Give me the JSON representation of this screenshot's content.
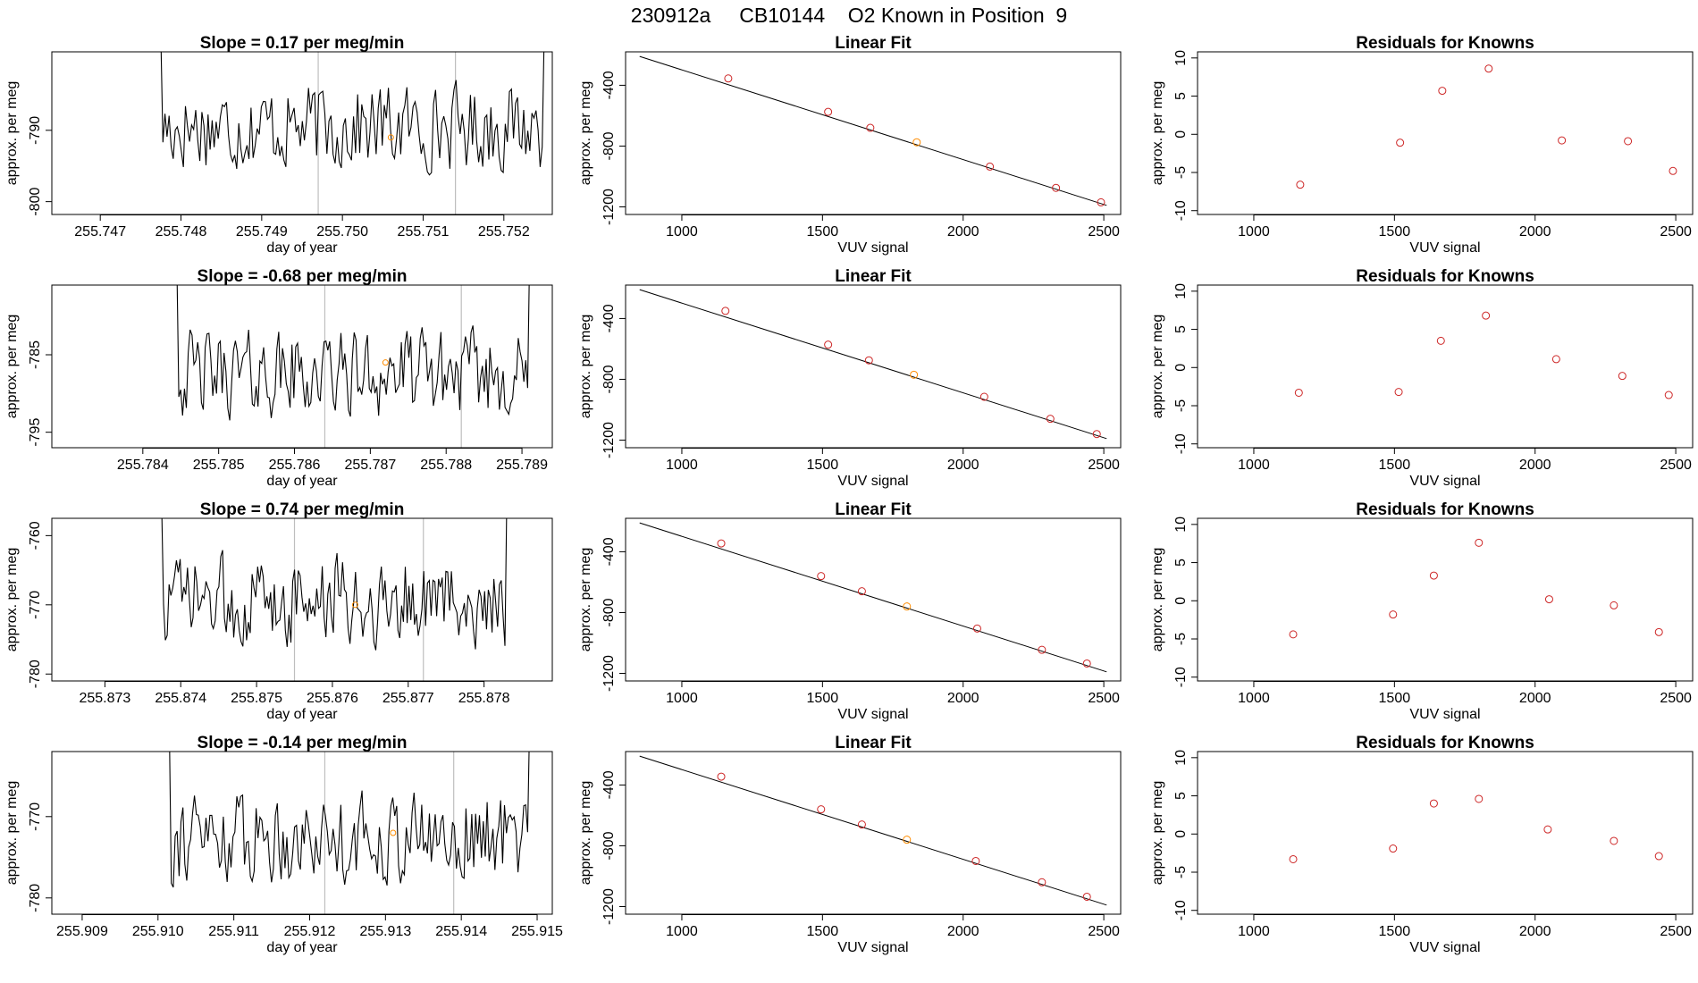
{
  "figure_title": "230912a     CB10144    O2 Known in Position  9",
  "colors": {
    "axis": "#000000",
    "line": "#000000",
    "residual_point": "#cd2626",
    "known_point": "#ff8c00",
    "vline": "#bebebe"
  },
  "chart_data": [
    {
      "type": "line",
      "title": "Slope =  0.17  per meg/min",
      "xlabel": "day of year",
      "ylabel": "approx. per meg",
      "xlim": [
        255.7464,
        255.7526
      ],
      "ylim": [
        -801.8,
        -779
      ],
      "xticks": [
        255.747,
        255.748,
        255.749,
        255.75,
        255.751,
        255.752
      ],
      "xtick_labels": [
        "255.747",
        "255.748",
        "255.749",
        "255.750",
        "255.751",
        "255.752"
      ],
      "yticks": [
        -790,
        -800
      ],
      "ytick_labels": [
        "-790",
        "-800"
      ],
      "vlines": [
        255.7497,
        255.7514
      ],
      "highlight": {
        "x": 255.7506,
        "y": -791
      },
      "series_x_range": [
        255.7477,
        255.7525
      ],
      "series_mean": -789.5,
      "series_amp": 6.5,
      "seed": 17
    },
    {
      "type": "scatter",
      "title": "Linear Fit",
      "xlabel": "VUV signal",
      "ylabel": "approx. per meg",
      "xlim": [
        800,
        2560
      ],
      "ylim": [
        -1250,
        -180
      ],
      "xticks": [
        1000,
        1500,
        2000,
        2500
      ],
      "xtick_labels": [
        "1000",
        "1500",
        "2000",
        "2500"
      ],
      "yticks": [
        -400,
        -800,
        -1200
      ],
      "ytick_labels": [
        "-400",
        "-800",
        "-1200"
      ],
      "fit_line": {
        "x": [
          850,
          2510
        ],
        "y": [
          -210,
          -1190
        ]
      },
      "x": [
        1165,
        1520,
        1670,
        1835,
        2095,
        2330,
        2490
      ],
      "y": [
        -355,
        -575,
        -680,
        -775,
        -935,
        -1075,
        -1170
      ],
      "known_index": 3
    },
    {
      "type": "scatter",
      "title": "Residuals for Knowns",
      "xlabel": "VUV signal",
      "ylabel": "approx. per meg",
      "xlim": [
        800,
        2560
      ],
      "ylim": [
        -10.5,
        10.8
      ],
      "xticks": [
        1000,
        1500,
        2000,
        2500
      ],
      "xtick_labels": [
        "1000",
        "1500",
        "2000",
        "2500"
      ],
      "yticks": [
        10,
        5,
        0,
        -5,
        -10
      ],
      "ytick_labels": [
        "10",
        "5",
        "0",
        "-5",
        "-10"
      ],
      "x": [
        1165,
        1520,
        1670,
        1835,
        2095,
        2330,
        2490
      ],
      "y": [
        -6.6,
        -1.1,
        5.7,
        8.6,
        -0.8,
        -0.9,
        -4.8
      ]
    },
    {
      "type": "line",
      "title": "Slope =  -0.68  per meg/min",
      "xlabel": "day of year",
      "ylabel": "approx. per meg",
      "xlim": [
        255.7828,
        255.7894
      ],
      "ylim": [
        -797,
        -776
      ],
      "xticks": [
        255.784,
        255.785,
        255.786,
        255.787,
        255.788,
        255.789
      ],
      "xtick_labels": [
        "255.784",
        "255.785",
        "255.786",
        "255.787",
        "255.788",
        "255.789"
      ],
      "yticks": [
        -785,
        -795
      ],
      "ytick_labels": [
        "-785",
        "-795"
      ],
      "vlines": [
        255.7864,
        255.7882
      ],
      "highlight": {
        "x": 255.7872,
        "y": -786
      },
      "series_x_range": [
        255.7844,
        255.7891
      ],
      "series_mean": -787.5,
      "series_amp": 6,
      "seed": 42
    },
    {
      "type": "scatter",
      "title": "Linear Fit",
      "xlabel": "VUV signal",
      "ylabel": "approx. per meg",
      "xlim": [
        800,
        2560
      ],
      "ylim": [
        -1250,
        -180
      ],
      "xticks": [
        1000,
        1500,
        2000,
        2500
      ],
      "xtick_labels": [
        "1000",
        "1500",
        "2000",
        "2500"
      ],
      "yticks": [
        -400,
        -800,
        -1200
      ],
      "ytick_labels": [
        "-400",
        "-800",
        "-1200"
      ],
      "fit_line": {
        "x": [
          850,
          2510
        ],
        "y": [
          -210,
          -1190
        ]
      },
      "x": [
        1155,
        1520,
        1665,
        1825,
        2075,
        2310,
        2475
      ],
      "y": [
        -350,
        -572,
        -675,
        -770,
        -915,
        -1060,
        -1160
      ],
      "known_index": 3
    },
    {
      "type": "scatter",
      "title": "Residuals for Knowns",
      "xlabel": "VUV signal",
      "ylabel": "approx. per meg",
      "xlim": [
        800,
        2560
      ],
      "ylim": [
        -10.5,
        10.8
      ],
      "xticks": [
        1000,
        1500,
        2000,
        2500
      ],
      "xtick_labels": [
        "1000",
        "1500",
        "2000",
        "2500"
      ],
      "yticks": [
        10,
        5,
        0,
        -5,
        -10
      ],
      "ytick_labels": [
        "10",
        "5",
        "0",
        "-5",
        "-10"
      ],
      "x": [
        1160,
        1515,
        1665,
        1825,
        2075,
        2310,
        2475
      ],
      "y": [
        -3.3,
        -3.2,
        3.5,
        6.8,
        1.1,
        -1.1,
        -3.6
      ]
    },
    {
      "type": "line",
      "title": "Slope =  0.74  per meg/min",
      "xlabel": "day of year",
      "ylabel": "approx. per meg",
      "xlim": [
        255.8723,
        255.8789
      ],
      "ylim": [
        -781,
        -757.5
      ],
      "xticks": [
        255.873,
        255.874,
        255.875,
        255.876,
        255.877,
        255.878
      ],
      "xtick_labels": [
        "255.873",
        "255.874",
        "255.875",
        "255.876",
        "255.877",
        "255.878"
      ],
      "yticks": [
        -760,
        -770,
        -780
      ],
      "ytick_labels": [
        "-760",
        "-770",
        "-780"
      ],
      "vlines": [
        255.8755,
        255.8772
      ],
      "highlight": {
        "x": 255.8763,
        "y": -770
      },
      "series_x_range": [
        255.8737,
        255.8783
      ],
      "series_mean": -769.5,
      "series_amp": 7,
      "seed": 73
    },
    {
      "type": "scatter",
      "title": "Linear Fit",
      "xlabel": "VUV signal",
      "ylabel": "approx. per meg",
      "xlim": [
        800,
        2560
      ],
      "ylim": [
        -1250,
        -180
      ],
      "xticks": [
        1000,
        1500,
        2000,
        2500
      ],
      "xtick_labels": [
        "1000",
        "1500",
        "2000",
        "2500"
      ],
      "yticks": [
        -400,
        -800,
        -1200
      ],
      "ytick_labels": [
        "-400",
        "-800",
        "-1200"
      ],
      "fit_line": {
        "x": [
          850,
          2510
        ],
        "y": [
          -210,
          -1190
        ]
      },
      "x": [
        1140,
        1495,
        1640,
        1800,
        2050,
        2280,
        2440
      ],
      "y": [
        -345,
        -560,
        -660,
        -760,
        -905,
        -1045,
        -1135
      ],
      "known_index": 3
    },
    {
      "type": "scatter",
      "title": "Residuals for Knowns",
      "xlabel": "VUV signal",
      "ylabel": "approx. per meg",
      "xlim": [
        800,
        2560
      ],
      "ylim": [
        -10.5,
        10.8
      ],
      "xticks": [
        1000,
        1500,
        2000,
        2500
      ],
      "xtick_labels": [
        "1000",
        "1500",
        "2000",
        "2500"
      ],
      "yticks": [
        10,
        5,
        0,
        -5,
        -10
      ],
      "ytick_labels": [
        "10",
        "5",
        "0",
        "-5",
        "-10"
      ],
      "x": [
        1140,
        1495,
        1640,
        1800,
        2050,
        2280,
        2440
      ],
      "y": [
        -4.4,
        -1.8,
        3.3,
        7.6,
        0.2,
        -0.6,
        -4.1
      ]
    },
    {
      "type": "line",
      "title": "Slope =  -0.14  per meg/min",
      "xlabel": "day of year",
      "ylabel": "approx. per meg",
      "xlim": [
        255.9086,
        255.9152
      ],
      "ylim": [
        -782,
        -762
      ],
      "xticks": [
        255.909,
        255.91,
        255.911,
        255.912,
        255.913,
        255.914,
        255.915
      ],
      "xtick_labels": [
        "255.909",
        "255.910",
        "255.911",
        "255.912",
        "255.913",
        "255.914",
        "255.915"
      ],
      "yticks": [
        -770,
        -780
      ],
      "ytick_labels": [
        "-770",
        "-780"
      ],
      "vlines": [
        255.9122,
        255.9139
      ],
      "highlight": {
        "x": 255.9131,
        "y": -772
      },
      "series_x_range": [
        255.9101,
        255.9149
      ],
      "series_mean": -772.5,
      "series_amp": 6,
      "seed": 91
    },
    {
      "type": "scatter",
      "title": "Linear Fit",
      "xlabel": "VUV signal",
      "ylabel": "approx. per meg",
      "xlim": [
        800,
        2560
      ],
      "ylim": [
        -1250,
        -180
      ],
      "xticks": [
        1000,
        1500,
        2000,
        2500
      ],
      "xtick_labels": [
        "1000",
        "1500",
        "2000",
        "2500"
      ],
      "yticks": [
        -400,
        -800,
        -1200
      ],
      "ytick_labels": [
        "-400",
        "-800",
        "-1200"
      ],
      "fit_line": {
        "x": [
          850,
          2510
        ],
        "y": [
          -210,
          -1190
        ]
      },
      "x": [
        1140,
        1495,
        1640,
        1800,
        2045,
        2280,
        2440
      ],
      "y": [
        -345,
        -560,
        -660,
        -760,
        -900,
        -1040,
        -1135
      ],
      "known_index": 3
    },
    {
      "type": "scatter",
      "title": "Residuals for Knowns",
      "xlabel": "VUV signal",
      "ylabel": "approx. per meg",
      "xlim": [
        800,
        2560
      ],
      "ylim": [
        -10.5,
        10.8
      ],
      "xticks": [
        1000,
        1500,
        2000,
        2500
      ],
      "xtick_labels": [
        "1000",
        "1500",
        "2000",
        "2500"
      ],
      "yticks": [
        10,
        5,
        0,
        -5,
        -10
      ],
      "ytick_labels": [
        "10",
        "5",
        "0",
        "-5",
        "-10"
      ],
      "x": [
        1140,
        1495,
        1640,
        1800,
        2045,
        2280,
        2440
      ],
      "y": [
        -3.3,
        -1.9,
        4.0,
        4.6,
        0.6,
        -0.9,
        -2.9
      ]
    }
  ]
}
